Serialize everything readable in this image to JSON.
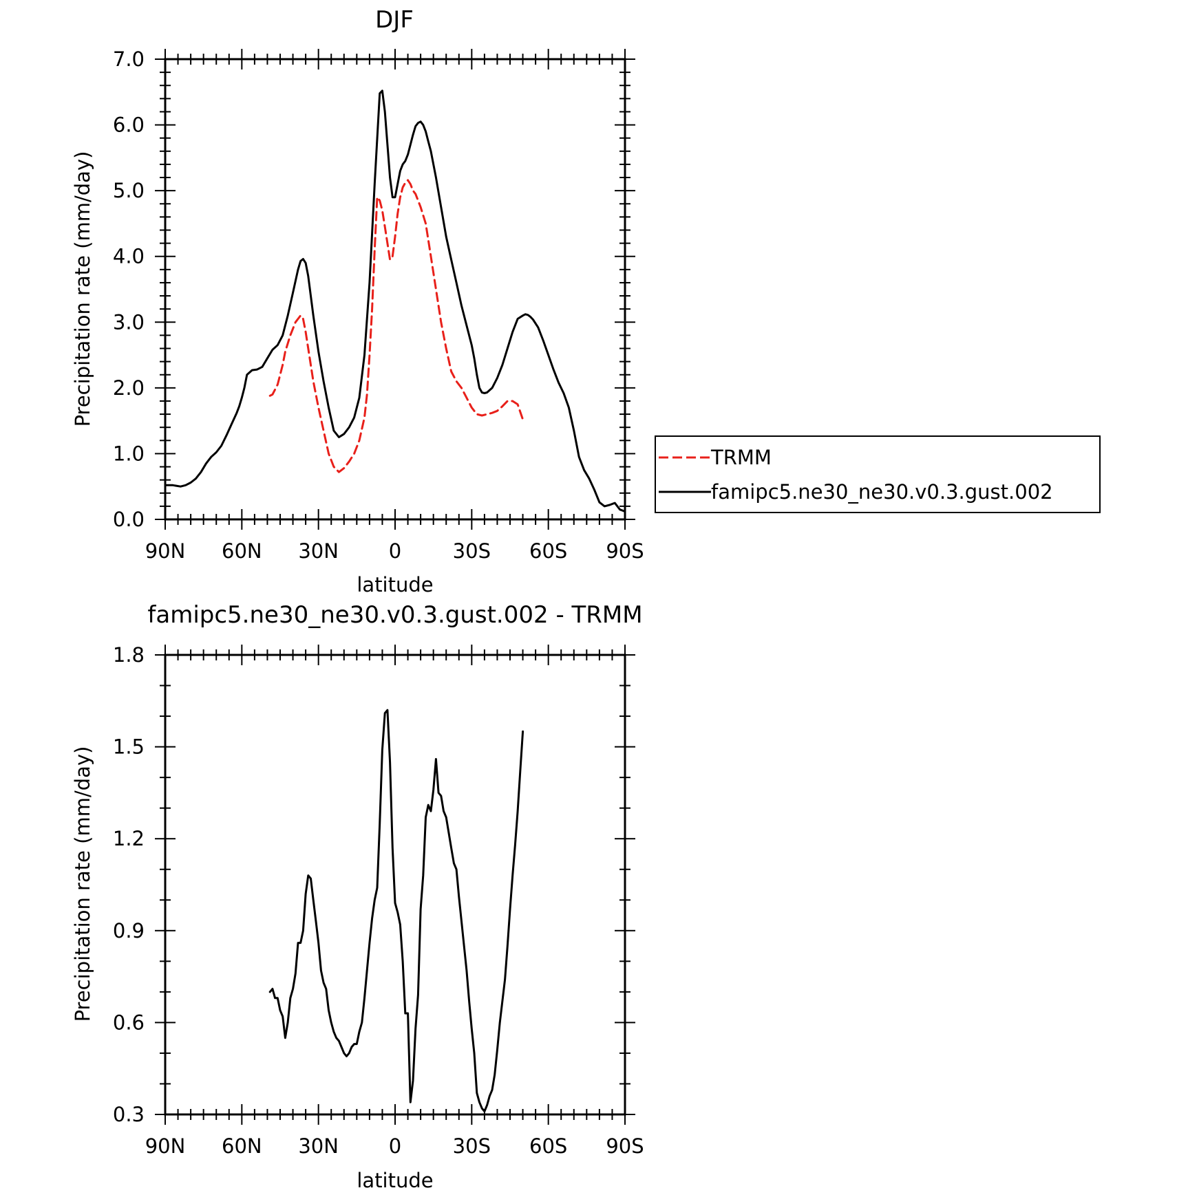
{
  "chart_data": [
    {
      "type": "line",
      "title": "DJF",
      "xlabel": "latitude",
      "ylabel": "Precipitation rate (mm/day)",
      "xlim": [
        -90,
        90
      ],
      "ylim": [
        0,
        7
      ],
      "xticks": [
        -90,
        -60,
        -30,
        0,
        30,
        60,
        90
      ],
      "xtick_labels": [
        "90N",
        "60N",
        "30N",
        "0",
        "30S",
        "60S",
        "90S"
      ],
      "yticks": [
        0,
        1,
        2,
        3,
        4,
        5,
        6,
        7
      ],
      "ytick_labels": [
        "0.0",
        "1.0",
        "2.0",
        "3.0",
        "4.0",
        "5.0",
        "6.0",
        "7.0"
      ],
      "grid": false,
      "legend": "right",
      "series": [
        {
          "name": "TRMM",
          "color": "#e8201a",
          "dash": "dashed",
          "x": [
            -49,
            -48,
            -46,
            -44,
            -43,
            -41,
            -39,
            -37,
            -36,
            -35,
            -34,
            -33,
            -32,
            -30,
            -28,
            -26,
            -24,
            -22,
            -20,
            -18,
            -16,
            -14,
            -12,
            -11,
            -10,
            -9,
            -8,
            -7,
            -6,
            -5,
            -4,
            -3,
            -2,
            -1,
            0,
            1,
            2,
            3,
            4,
            5,
            6,
            7,
            8,
            9,
            10,
            12,
            14,
            16,
            18,
            20,
            22,
            24,
            26,
            28,
            30,
            32,
            34,
            36,
            38,
            40,
            42,
            44,
            46,
            48,
            50
          ],
          "y": [
            1.88,
            1.9,
            2.05,
            2.35,
            2.55,
            2.8,
            3.0,
            3.1,
            3.05,
            2.85,
            2.6,
            2.35,
            2.1,
            1.7,
            1.35,
            1.0,
            0.8,
            0.72,
            0.78,
            0.88,
            1.0,
            1.2,
            1.55,
            1.9,
            2.5,
            3.2,
            4.1,
            4.9,
            4.85,
            4.7,
            4.45,
            4.2,
            3.95,
            4.0,
            4.3,
            4.65,
            4.9,
            5.05,
            5.12,
            5.16,
            5.1,
            5.0,
            4.95,
            4.85,
            4.75,
            4.5,
            4.0,
            3.5,
            3.0,
            2.6,
            2.25,
            2.1,
            2.0,
            1.85,
            1.7,
            1.6,
            1.58,
            1.6,
            1.62,
            1.65,
            1.72,
            1.8,
            1.8,
            1.75,
            1.52
          ]
        },
        {
          "name": "famipc5.ne30_ne30.v0.3.gust.002",
          "color": "#000000",
          "dash": "solid",
          "x": [
            -90,
            -87,
            -84,
            -82,
            -80,
            -78,
            -76,
            -74,
            -72,
            -70,
            -68,
            -66,
            -64,
            -62,
            -61,
            -60,
            -59,
            -58,
            -56,
            -54,
            -52,
            -50,
            -48,
            -46,
            -44,
            -42,
            -40,
            -38,
            -37,
            -36,
            -35,
            -34,
            -33,
            -32,
            -30,
            -28,
            -26,
            -24,
            -22,
            -20,
            -18,
            -16,
            -14,
            -12,
            -10,
            -8,
            -6,
            -5,
            -4,
            -3,
            -2,
            -1,
            0,
            1,
            2,
            3,
            4,
            5,
            6,
            7,
            8,
            9,
            10,
            11,
            12,
            13,
            14,
            16,
            18,
            20,
            22,
            24,
            26,
            28,
            30,
            31,
            32,
            33,
            34,
            35,
            36,
            38,
            40,
            42,
            44,
            46,
            48,
            50,
            51,
            52,
            53,
            54,
            56,
            58,
            60,
            62,
            64,
            66,
            68,
            70,
            72,
            74,
            76,
            78,
            80,
            82,
            84,
            86,
            88,
            90
          ],
          "y": [
            0.52,
            0.52,
            0.5,
            0.52,
            0.56,
            0.62,
            0.72,
            0.85,
            0.95,
            1.02,
            1.12,
            1.28,
            1.45,
            1.62,
            1.72,
            1.85,
            2.0,
            2.2,
            2.27,
            2.28,
            2.32,
            2.45,
            2.58,
            2.65,
            2.8,
            3.1,
            3.45,
            3.8,
            3.93,
            3.96,
            3.9,
            3.7,
            3.4,
            3.1,
            2.55,
            2.1,
            1.7,
            1.35,
            1.25,
            1.3,
            1.4,
            1.55,
            1.85,
            2.5,
            3.6,
            5.1,
            6.48,
            6.52,
            6.2,
            5.7,
            5.2,
            4.9,
            4.9,
            5.1,
            5.3,
            5.4,
            5.45,
            5.55,
            5.7,
            5.85,
            5.98,
            6.03,
            6.05,
            6.0,
            5.9,
            5.75,
            5.6,
            5.2,
            4.75,
            4.3,
            3.95,
            3.6,
            3.25,
            2.95,
            2.65,
            2.45,
            2.2,
            2.0,
            1.93,
            1.92,
            1.93,
            2.0,
            2.15,
            2.35,
            2.6,
            2.85,
            3.05,
            3.1,
            3.12,
            3.11,
            3.08,
            3.04,
            2.92,
            2.72,
            2.5,
            2.28,
            2.08,
            1.92,
            1.7,
            1.35,
            0.95,
            0.75,
            0.62,
            0.45,
            0.26,
            0.2,
            0.22,
            0.25,
            0.15,
            0.12
          ]
        }
      ]
    },
    {
      "type": "line",
      "title": "famipc5.ne30_ne30.v0.3.gust.002 - TRMM",
      "xlabel": "latitude",
      "ylabel": "Precipitation rate (mm/day)",
      "xlim": [
        -90,
        90
      ],
      "ylim": [
        0.3,
        1.8
      ],
      "xticks": [
        -90,
        -60,
        -30,
        0,
        30,
        60,
        90
      ],
      "xtick_labels": [
        "90N",
        "60N",
        "30N",
        "0",
        "30S",
        "60S",
        "90S"
      ],
      "yticks": [
        0.3,
        0.6,
        0.9,
        1.2,
        1.5,
        1.8
      ],
      "ytick_labels": [
        "0.3",
        "0.6",
        "0.9",
        "1.2",
        "1.5",
        "1.8"
      ],
      "grid": false,
      "series": [
        {
          "color": "#000000",
          "dash": "solid",
          "x": [
            -49,
            -48,
            -47,
            -46,
            -45,
            -44,
            -43,
            -42,
            -41,
            -40,
            -39,
            -38,
            -37,
            -36,
            -35,
            -34,
            -33,
            -32,
            -31,
            -30,
            -29,
            -28,
            -27,
            -26,
            -25,
            -24,
            -23,
            -22,
            -21,
            -20,
            -19,
            -18,
            -17,
            -16,
            -15,
            -14,
            -13,
            -12,
            -11,
            -10,
            -9,
            -8,
            -7,
            -6,
            -5,
            -4,
            -3,
            -2,
            -1,
            0,
            1,
            2,
            3,
            4,
            5,
            6,
            7,
            8,
            9,
            10,
            11,
            12,
            13,
            14,
            15,
            16,
            17,
            18,
            19,
            20,
            21,
            22,
            23,
            24,
            25,
            26,
            27,
            28,
            29,
            30,
            31,
            32,
            33,
            34,
            35,
            36,
            37,
            38,
            39,
            40,
            41,
            42,
            43,
            44,
            45,
            46,
            47,
            48,
            49,
            50
          ],
          "y": [
            0.7,
            0.71,
            0.68,
            0.68,
            0.64,
            0.62,
            0.55,
            0.6,
            0.68,
            0.71,
            0.76,
            0.86,
            0.86,
            0.9,
            1.02,
            1.08,
            1.07,
            1.0,
            0.93,
            0.86,
            0.77,
            0.73,
            0.71,
            0.64,
            0.6,
            0.57,
            0.55,
            0.54,
            0.52,
            0.5,
            0.49,
            0.5,
            0.52,
            0.53,
            0.53,
            0.57,
            0.6,
            0.68,
            0.77,
            0.86,
            0.94,
            1.0,
            1.04,
            1.25,
            1.49,
            1.61,
            1.62,
            1.45,
            1.17,
            0.99,
            0.96,
            0.92,
            0.8,
            0.63,
            0.63,
            0.34,
            0.41,
            0.58,
            0.69,
            0.97,
            1.08,
            1.27,
            1.31,
            1.29,
            1.36,
            1.46,
            1.35,
            1.34,
            1.29,
            1.27,
            1.22,
            1.17,
            1.12,
            1.1,
            1.01,
            0.93,
            0.85,
            0.77,
            0.67,
            0.58,
            0.5,
            0.37,
            0.34,
            0.32,
            0.31,
            0.33,
            0.36,
            0.38,
            0.43,
            0.51,
            0.6,
            0.67,
            0.74,
            0.85,
            0.97,
            1.08,
            1.18,
            1.29,
            1.42,
            1.55
          ]
        }
      ]
    }
  ],
  "legend": {
    "entries": [
      "TRMM",
      "famipc5.ne30_ne30.v0.3.gust.002"
    ]
  }
}
